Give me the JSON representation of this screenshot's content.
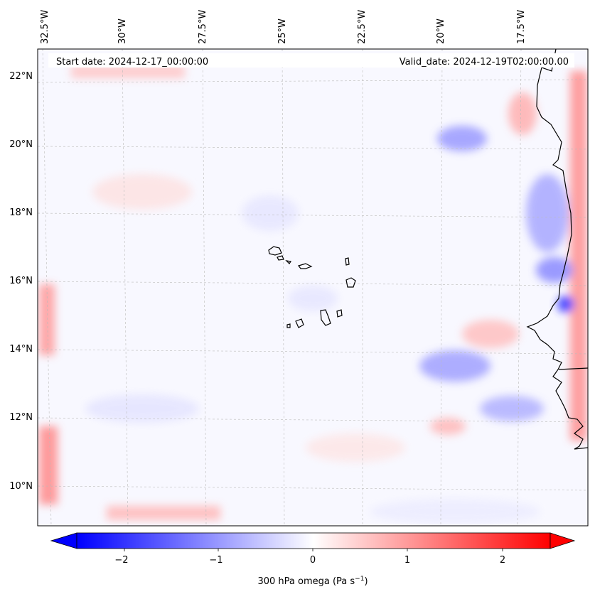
{
  "header": {
    "start_date": "Start date: 2024-12-17_00:00:00",
    "valid_date": "Valid_date: 2024-12-19T02:00:00.00"
  },
  "map": {
    "region": "Cape Verde / West African coast",
    "lon_labels": [
      "32.5°W",
      "30°W",
      "27.5°W",
      "25°W",
      "22.5°W",
      "20°W",
      "17.5°W"
    ],
    "lat_labels": [
      "22°N",
      "20°N",
      "18°N",
      "16°N",
      "14°N",
      "12°N",
      "10°N"
    ]
  },
  "colorbar": {
    "ticks": [
      "−2",
      "−1",
      "0",
      "1",
      "2"
    ],
    "label_main": "300 hPa omega (Pa s",
    "label_sup": "−1",
    "label_end": ")",
    "min_color": "#0000ff",
    "mid_color": "#ffffff",
    "max_color": "#ff0000"
  }
}
